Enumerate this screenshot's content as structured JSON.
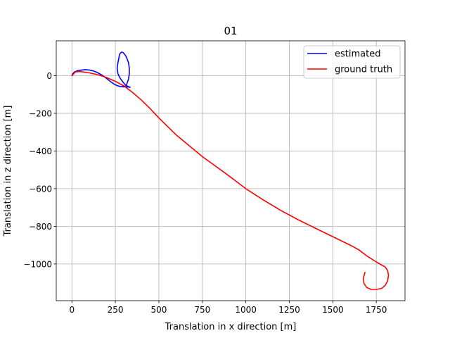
{
  "chart_data": {
    "type": "line",
    "title": "01",
    "xlabel": "Translation in x direction [m]",
    "ylabel": "Translation in z direction [m]",
    "xlim": [
      -90,
      1915
    ],
    "ylim": [
      -1195,
      185
    ],
    "xticks": [
      0,
      250,
      500,
      750,
      1000,
      1250,
      1500,
      1750
    ],
    "yticks": [
      0,
      -200,
      -400,
      -600,
      -800,
      -1000
    ],
    "grid": true,
    "legend_position": "top-right",
    "series": [
      {
        "name": "estimated",
        "color": "#0000ff",
        "x": [
          0,
          5,
          15,
          30,
          50,
          75,
          100,
          125,
          150,
          175,
          200,
          220,
          240,
          260,
          280,
          300,
          320,
          335,
          330,
          310,
          290,
          275,
          265,
          260,
          265,
          270,
          275,
          285,
          295,
          305,
          315,
          325,
          330,
          330,
          325,
          315,
          305,
          295,
          290
        ],
        "y": [
          0,
          10,
          20,
          26,
          29,
          32,
          30,
          25,
          15,
          2,
          -15,
          -30,
          -43,
          -53,
          -58,
          -59,
          -60,
          -62,
          -60,
          -52,
          -30,
          -10,
          10,
          40,
          70,
          95,
          115,
          125,
          122,
          112,
          95,
          70,
          40,
          10,
          -20,
          -45,
          -58,
          -60,
          -55
        ]
      },
      {
        "name": "ground truth",
        "color": "#ff0000",
        "x": [
          0,
          20,
          50,
          100,
          150,
          200,
          250,
          300,
          350,
          400,
          450,
          500,
          600,
          750,
          900,
          1000,
          1100,
          1200,
          1300,
          1400,
          1500,
          1600,
          1650,
          1700,
          1760,
          1800,
          1815,
          1820,
          1815,
          1800,
          1780,
          1750,
          1720,
          1695,
          1680,
          1675,
          1680,
          1685
        ],
        "y": [
          0,
          20,
          22,
          15,
          5,
          -10,
          -30,
          -55,
          -90,
          -130,
          -175,
          -225,
          -315,
          -430,
          -530,
          -600,
          -660,
          -715,
          -765,
          -810,
          -855,
          -900,
          -925,
          -960,
          -995,
          -1015,
          -1035,
          -1060,
          -1090,
          -1115,
          -1130,
          -1135,
          -1135,
          -1125,
          -1105,
          -1080,
          -1060,
          -1045
        ]
      }
    ]
  }
}
